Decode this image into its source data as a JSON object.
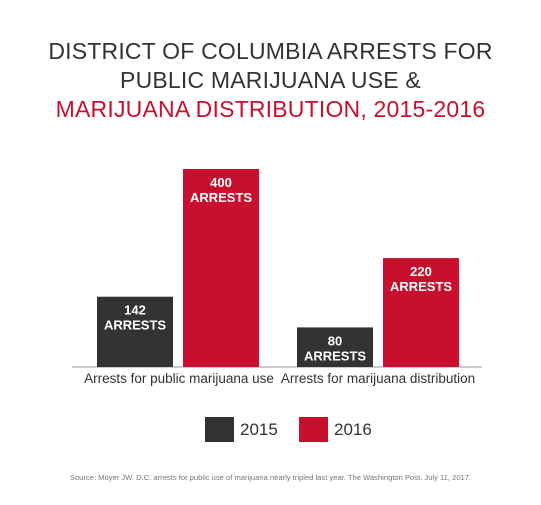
{
  "title": {
    "line1": "DISTRICT OF COLUMBIA ARRESTS FOR",
    "line2": "PUBLIC MARIJUANA USE &",
    "line3": "MARIJUANA DISTRIBUTION, 2015-2016"
  },
  "colors": {
    "title": "#333333",
    "title_accent": "#c8102e",
    "series_2015": "#333333",
    "series_2016": "#c8102e",
    "axis": "#999999"
  },
  "chart_data": {
    "type": "bar",
    "title": "DISTRICT OF COLUMBIA ARRESTS FOR PUBLIC MARIJUANA USE & MARIJUANA DISTRIBUTION, 2015-2016",
    "categories": [
      "Arrests for public marijuana use",
      "Arrests for marijuana distribution"
    ],
    "series": [
      {
        "name": "2015",
        "values": [
          142,
          80
        ],
        "labels": [
          "142",
          "80"
        ],
        "unit": "ARRESTS",
        "color": "#333333"
      },
      {
        "name": "2016",
        "values": [
          400,
          220
        ],
        "labels": [
          "400",
          "220"
        ],
        "unit": "ARRESTS",
        "color": "#c8102e"
      }
    ],
    "ylim": [
      0,
      400
    ],
    "grid": false,
    "legend": "bottom"
  },
  "legend": {
    "items": [
      {
        "label": "2015",
        "color": "#333333"
      },
      {
        "label": "2016",
        "color": "#c8102e"
      }
    ]
  },
  "source": "Source: Moyer JW. D.C. arrests for public use of marijuana nearly tripled last year. The Washington Post. July 11, 2017."
}
